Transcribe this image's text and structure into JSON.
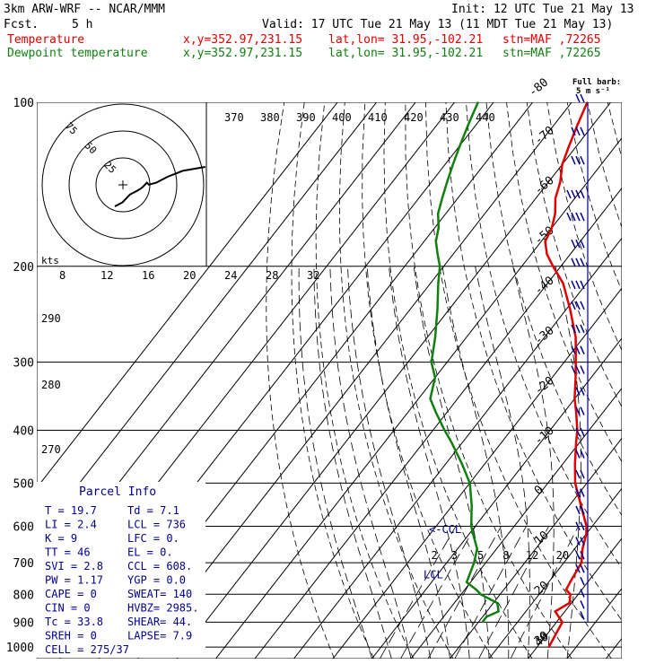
{
  "header": {
    "model": "3km ARW-WRF -- NCAR/MMM",
    "fcst_label": "Fcst.",
    "fcst_value": "5 h",
    "init": "Init: 12 UTC Tue 21 May 13",
    "valid": "Valid: 17 UTC Tue 21 May 13 (11 MDT Tue 21 May 13)",
    "temp_label": "Temperature",
    "dew_label": "Dewpoint temperature",
    "xy": "x,y=352.97,231.15",
    "latlon": "lat,lon= 31.95,-102.21",
    "stn": "stn=MAF ,72265"
  },
  "colors": {
    "temperature": "#e00000",
    "dewpoint": "#108010",
    "barb": "#000090",
    "grid": "#000000"
  },
  "chart_data": {
    "type": "line",
    "title": "",
    "pressure_levels": [
      100,
      200,
      300,
      400,
      500,
      600,
      700,
      800,
      900,
      1000
    ],
    "isotherm_labels": [
      "-80",
      "-70",
      "-60",
      "-50",
      "-40",
      "-30",
      "-20",
      "-10",
      "0",
      "10",
      "20",
      "30",
      "40"
    ],
    "theta_labels": [
      "370",
      "380",
      "390",
      "400",
      "410",
      "420",
      "430",
      "440"
    ],
    "theta_e_labels": [
      "290",
      "280",
      "270"
    ],
    "mixing_ratio_labels": [
      "2",
      "3",
      "5",
      "8",
      "12",
      "20"
    ],
    "hodo_speed_labels": [
      "8",
      "12",
      "16",
      "20",
      "24",
      "28",
      "32"
    ],
    "hodo_ring_labels": [
      "75",
      "50",
      "25"
    ],
    "hodo_unit": "kts",
    "barb_legend": [
      "Full barb:",
      "5 m s⁻¹"
    ],
    "series": [
      {
        "name": "Temperature",
        "p": [
          1000,
          900,
          860,
          830,
          800,
          785,
          760,
          700,
          660,
          620,
          600,
          550,
          500,
          460,
          420,
          400,
          370,
          350,
          320,
          300,
          270,
          240,
          215,
          200,
          190,
          180,
          170,
          160,
          150,
          140,
          130,
          120,
          110,
          100
        ],
        "t": [
          33,
          31.5,
          27.5,
          29.5,
          28,
          26,
          25.5,
          24.5,
          22,
          20,
          18.5,
          13,
          7,
          3,
          -1,
          -3,
          -7,
          -10,
          -14,
          -17,
          -22,
          -29,
          -36,
          -42,
          -46,
          -49,
          -50,
          -52,
          -55,
          -57,
          -60,
          -62,
          -64,
          -66
        ]
      },
      {
        "name": "Dewpoint temperature",
        "p": [
          900,
          880,
          860,
          830,
          800,
          785,
          760,
          700,
          660,
          620,
          600,
          550,
          500,
          460,
          420,
          400,
          370,
          350,
          320,
          300,
          270,
          240,
          215,
          200,
          190,
          180,
          170,
          160,
          150,
          140,
          130,
          120,
          110,
          100
        ],
        "t": [
          11,
          11,
          13,
          11,
          5,
          3,
          -1,
          -3,
          -5,
          -9,
          -11,
          -15,
          -20,
          -26,
          -33,
          -37,
          -43,
          -47,
          -50,
          -54,
          -58,
          -63,
          -68,
          -71,
          -74,
          -77,
          -79,
          -82,
          -84,
          -86,
          -88,
          -90,
          -92,
          -94
        ]
      }
    ],
    "markers": {
      "lcl": "LCL",
      "ccl": "<-CCL"
    },
    "hodograph": [
      [
        0,
        0
      ],
      [
        1,
        0.5
      ],
      [
        2,
        1
      ],
      [
        3,
        2
      ],
      [
        4,
        3
      ],
      [
        5,
        3.5
      ],
      [
        6,
        4
      ],
      [
        7,
        4.6
      ],
      [
        7.5,
        5
      ],
      [
        8,
        5.5
      ],
      [
        8.5,
        6
      ],
      [
        9,
        5.5
      ],
      [
        11,
        6
      ],
      [
        12,
        6.5
      ],
      [
        14,
        7.5
      ],
      [
        18,
        9
      ],
      [
        24,
        10
      ]
    ],
    "wind_barbs": [
      {
        "p": 100,
        "dir": 260,
        "spd": 2
      },
      {
        "p": 115,
        "dir": 260,
        "spd": 3
      },
      {
        "p": 130,
        "dir": 265,
        "spd": 3
      },
      {
        "p": 150,
        "dir": 265,
        "spd": 4
      },
      {
        "p": 165,
        "dir": 265,
        "spd": 4
      },
      {
        "p": 185,
        "dir": 270,
        "spd": 3
      },
      {
        "p": 200,
        "dir": 270,
        "spd": 3
      },
      {
        "p": 220,
        "dir": 270,
        "spd": 3
      },
      {
        "p": 240,
        "dir": 270,
        "spd": 3
      },
      {
        "p": 265,
        "dir": 275,
        "spd": 3
      },
      {
        "p": 290,
        "dir": 275,
        "spd": 3
      },
      {
        "p": 315,
        "dir": 275,
        "spd": 3
      },
      {
        "p": 345,
        "dir": 280,
        "spd": 2
      },
      {
        "p": 375,
        "dir": 280,
        "spd": 2
      },
      {
        "p": 410,
        "dir": 285,
        "spd": 2
      },
      {
        "p": 450,
        "dir": 290,
        "spd": 2
      },
      {
        "p": 490,
        "dir": 290,
        "spd": 2
      },
      {
        "p": 530,
        "dir": 295,
        "spd": 2
      },
      {
        "p": 570,
        "dir": 295,
        "spd": 2
      },
      {
        "p": 610,
        "dir": 300,
        "spd": 2
      },
      {
        "p": 650,
        "dir": 300,
        "spd": 2
      },
      {
        "p": 690,
        "dir": 310,
        "spd": 2
      },
      {
        "p": 730,
        "dir": 320,
        "spd": 2
      },
      {
        "p": 770,
        "dir": 330,
        "spd": 1
      },
      {
        "p": 810,
        "dir": 340,
        "spd": 1
      },
      {
        "p": 850,
        "dir": 350,
        "spd": 1
      },
      {
        "p": 890,
        "dir": 360,
        "spd": 1
      }
    ]
  },
  "parcel": {
    "title": "Parcel Info",
    "rows": [
      [
        "T  =    19.7",
        "Td =    7.1"
      ],
      [
        "LI =     2.4",
        "LCL =  736"
      ],
      [
        "K  =       9",
        "LFC =    0."
      ],
      [
        "TT =      46",
        "EL  =    0."
      ],
      [
        "SVI =    2.8",
        "CCL =  608."
      ],
      [
        "PW =    1.17",
        "YGP =   0.0"
      ],
      [
        "CAPE =     0",
        "SWEAT=  140"
      ],
      [
        "CIN =      0",
        "HVBZ= 2985."
      ],
      [
        "Tc =    33.8",
        "SHEAR=  44."
      ],
      [
        "SREH =     0",
        "LAPSE=  7.9"
      ],
      [
        "CELL = 275/37",
        ""
      ]
    ]
  }
}
